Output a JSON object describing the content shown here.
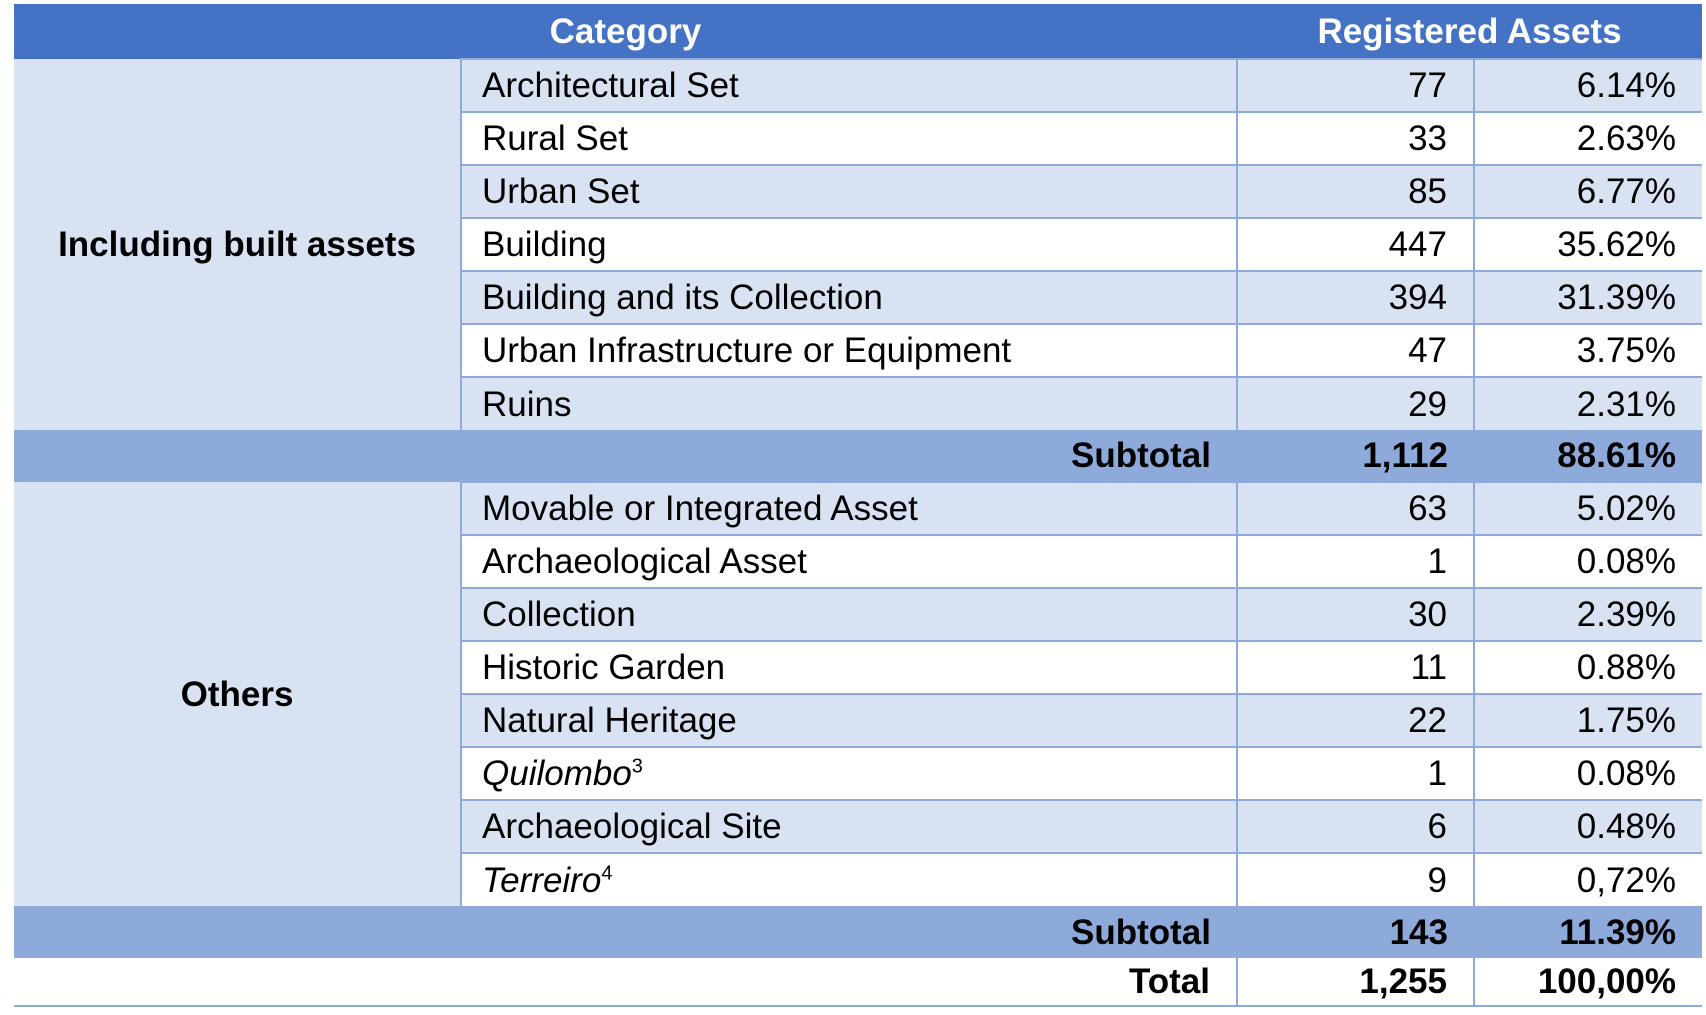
{
  "header": {
    "category": "Category",
    "registered_assets": "Registered Assets"
  },
  "groups": [
    {
      "label": "Including built assets",
      "rows": [
        {
          "name": "Architectural Set",
          "count": "77",
          "pct": "6.14%"
        },
        {
          "name": "Rural Set",
          "count": "33",
          "pct": "2.63%"
        },
        {
          "name": "Urban Set",
          "count": "85",
          "pct": "6.77%"
        },
        {
          "name": "Building",
          "count": "447",
          "pct": "35.62%"
        },
        {
          "name": "Building and its Collection",
          "count": "394",
          "pct": "31.39%"
        },
        {
          "name": "Urban Infrastructure or Equipment",
          "count": "47",
          "pct": "3.75%"
        },
        {
          "name": "Ruins",
          "count": "29",
          "pct": "2.31%"
        }
      ],
      "subtotal": {
        "label": "Subtotal",
        "count": "1,112",
        "pct": "88.61%"
      }
    },
    {
      "label": "Others",
      "rows": [
        {
          "name": "Movable or Integrated Asset",
          "count": "63",
          "pct": "5.02%"
        },
        {
          "name": "Archaeological Asset",
          "count": "1",
          "pct": "0.08%"
        },
        {
          "name": "Collection",
          "count": "30",
          "pct": "2.39%"
        },
        {
          "name": "Historic Garden",
          "count": "11",
          "pct": "0.88%"
        },
        {
          "name": "Natural Heritage",
          "count": "22",
          "pct": "1.75%"
        },
        {
          "name": "Quilombo",
          "footnote": "3",
          "italic": true,
          "count": "1",
          "pct": "0.08%"
        },
        {
          "name": "Archaeological Site",
          "count": "6",
          "pct": "0.48%"
        },
        {
          "name": "Terreiro",
          "footnote": "4",
          "italic": true,
          "count": "9",
          "pct": "0,72%"
        }
      ],
      "subtotal": {
        "label": "Subtotal",
        "count": "143",
        "pct": "11.39%"
      }
    }
  ],
  "total": {
    "label": "Total",
    "count": "1,255",
    "pct": "100,00%"
  },
  "colors": {
    "header_bg": "#4472c4",
    "band_bg": "#d9e2f3",
    "subtotal_bg": "#8eaadb",
    "grid_line": "#8eaadb"
  }
}
